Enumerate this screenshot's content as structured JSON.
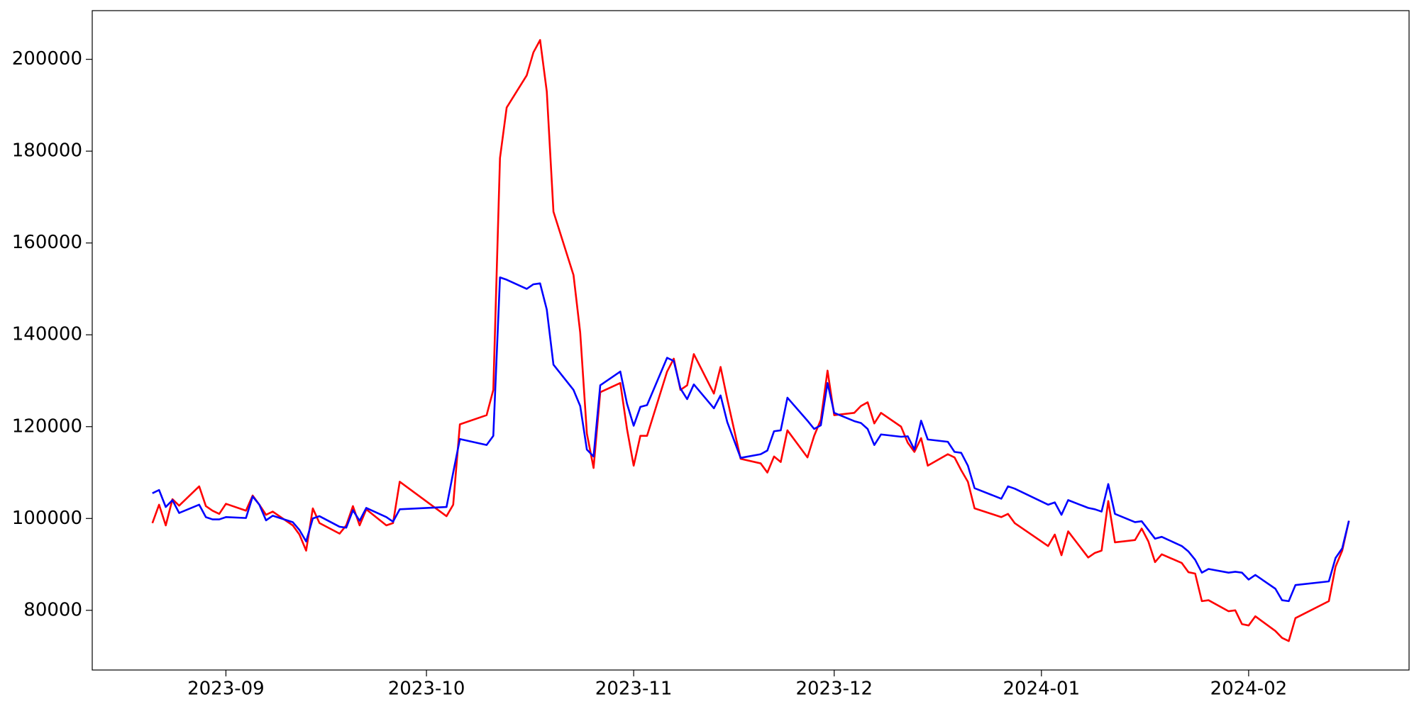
{
  "chart_data": {
    "type": "line",
    "x": [
      "2023-08-21",
      "2023-08-22",
      "2023-08-23",
      "2023-08-24",
      "2023-08-25",
      "2023-08-28",
      "2023-08-29",
      "2023-08-30",
      "2023-08-31",
      "2023-09-01",
      "2023-09-04",
      "2023-09-05",
      "2023-09-06",
      "2023-09-07",
      "2023-09-08",
      "2023-09-11",
      "2023-09-12",
      "2023-09-13",
      "2023-09-14",
      "2023-09-15",
      "2023-09-18",
      "2023-09-19",
      "2023-09-20",
      "2023-09-21",
      "2023-09-22",
      "2023-09-25",
      "2023-09-26",
      "2023-09-27",
      "2023-10-04",
      "2023-10-05",
      "2023-10-06",
      "2023-10-10",
      "2023-10-11",
      "2023-10-12",
      "2023-10-13",
      "2023-10-16",
      "2023-10-17",
      "2023-10-18",
      "2023-10-19",
      "2023-10-20",
      "2023-10-23",
      "2023-10-24",
      "2023-10-25",
      "2023-10-26",
      "2023-10-27",
      "2023-10-30",
      "2023-10-31",
      "2023-11-01",
      "2023-11-02",
      "2023-11-03",
      "2023-11-06",
      "2023-11-07",
      "2023-11-08",
      "2023-11-09",
      "2023-11-10",
      "2023-11-13",
      "2023-11-14",
      "2023-11-15",
      "2023-11-17",
      "2023-11-20",
      "2023-11-21",
      "2023-11-22",
      "2023-11-23",
      "2023-11-24",
      "2023-11-27",
      "2023-11-28",
      "2023-11-29",
      "2023-11-30",
      "2023-12-01",
      "2023-12-04",
      "2023-12-05",
      "2023-12-06",
      "2023-12-07",
      "2023-12-08",
      "2023-12-11",
      "2023-12-12",
      "2023-12-13",
      "2023-12-14",
      "2023-12-15",
      "2023-12-18",
      "2023-12-19",
      "2023-12-20",
      "2023-12-21",
      "2023-12-22",
      "2023-12-26",
      "2023-12-27",
      "2023-12-28",
      "2024-01-02",
      "2024-01-03",
      "2024-01-04",
      "2024-01-05",
      "2024-01-08",
      "2024-01-09",
      "2024-01-10",
      "2024-01-11",
      "2024-01-12",
      "2024-01-15",
      "2024-01-16",
      "2024-01-17",
      "2024-01-18",
      "2024-01-19",
      "2024-01-22",
      "2024-01-23",
      "2024-01-24",
      "2024-01-25",
      "2024-01-26",
      "2024-01-29",
      "2024-01-30",
      "2024-01-31",
      "2024-02-01",
      "2024-02-02",
      "2024-02-05",
      "2024-02-06",
      "2024-02-07",
      "2024-02-08",
      "2024-02-13",
      "2024-02-14",
      "2024-02-15",
      "2024-02-16"
    ],
    "series": [
      {
        "color": "#ff0000",
        "values": [
          99000,
          103000,
          98500,
          104200,
          102800,
          107000,
          102700,
          101700,
          101000,
          103200,
          101700,
          105000,
          103000,
          100800,
          101500,
          98500,
          96500,
          93000,
          102200,
          99000,
          96700,
          98500,
          102700,
          98500,
          102000,
          98500,
          99000,
          108000,
          100500,
          103000,
          120500,
          122500,
          128000,
          178500,
          189500,
          196500,
          201500,
          204200,
          193000,
          166800,
          153000,
          140500,
          118500,
          111000,
          127500,
          129500,
          119500,
          111500,
          118000,
          118000,
          132000,
          134800,
          128000,
          129000,
          135800,
          127200,
          133000,
          126000,
          113000,
          112000,
          110000,
          113500,
          112300,
          119200,
          113300,
          118000,
          121500,
          132200,
          122500,
          123000,
          124500,
          125300,
          120700,
          123000,
          120000,
          116500,
          114500,
          117500,
          111500,
          114000,
          113300,
          110500,
          108000,
          102200,
          100300,
          101000,
          99000,
          94000,
          96500,
          92000,
          97200,
          91500,
          92500,
          93000,
          103800,
          94800,
          95300,
          97800,
          95000,
          90500,
          92200,
          90300,
          88300,
          88000,
          82000,
          82200,
          79800,
          80000,
          77000,
          76700,
          78700,
          75500,
          74000,
          73300,
          78300,
          82000,
          89500,
          93000,
          99500
        ]
      },
      {
        "color": "#0000ff",
        "values": [
          105500,
          106200,
          102500,
          104000,
          101200,
          103000,
          100300,
          99800,
          99800,
          100300,
          100100,
          104800,
          103000,
          99600,
          100600,
          99200,
          97500,
          95000,
          100000,
          100500,
          98200,
          98000,
          101800,
          99500,
          102300,
          100300,
          99300,
          102000,
          102500,
          110000,
          117300,
          116000,
          118000,
          152500,
          152000,
          150000,
          151000,
          151200,
          145500,
          133500,
          128000,
          124500,
          115000,
          113500,
          129000,
          132000,
          125000,
          120200,
          124300,
          124700,
          135000,
          134300,
          128300,
          126000,
          129200,
          124000,
          126800,
          121000,
          113200,
          114000,
          114800,
          119000,
          119200,
          126300,
          121300,
          119500,
          120300,
          129500,
          123000,
          121200,
          120800,
          119500,
          116000,
          118300,
          117800,
          117900,
          115000,
          121300,
          117200,
          116700,
          114500,
          114300,
          111500,
          106600,
          104300,
          107000,
          106500,
          103000,
          103500,
          100800,
          104000,
          102300,
          102000,
          101500,
          107500,
          101000,
          99200,
          99400,
          97500,
          95600,
          96000,
          94000,
          92800,
          91000,
          88200,
          89000,
          88200,
          88400,
          88200,
          86700,
          87700,
          84700,
          82200,
          82000,
          85500,
          86300,
          91400,
          93500,
          99500
        ]
      }
    ],
    "xlim": [
      "2023-08-12",
      "2024-02-25"
    ],
    "xticks": [
      {
        "value": "2023-09-01",
        "label": "2023-09"
      },
      {
        "value": "2023-10-01",
        "label": "2023-10"
      },
      {
        "value": "2023-11-01",
        "label": "2023-11"
      },
      {
        "value": "2023-12-01",
        "label": "2023-12"
      },
      {
        "value": "2024-01-01",
        "label": "2024-01"
      },
      {
        "value": "2024-02-01",
        "label": "2024-02"
      }
    ],
    "ylim": [
      67000,
      210600
    ],
    "yticks": [
      80000,
      100000,
      120000,
      140000,
      160000,
      180000,
      200000
    ],
    "grid": false
  }
}
